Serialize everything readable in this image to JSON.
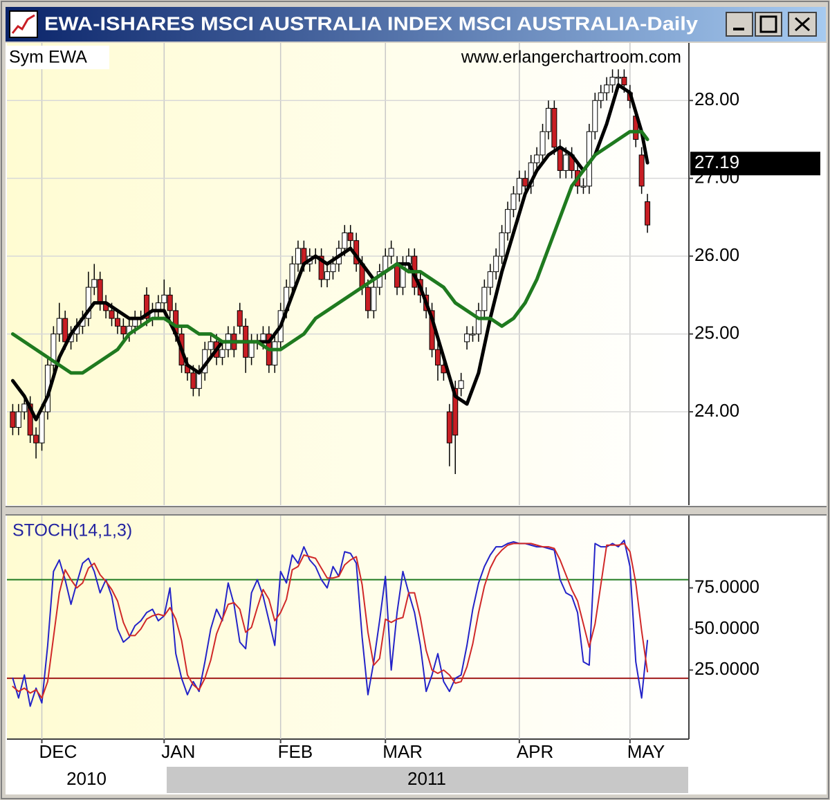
{
  "window_title": "EWA-ISHARES MSCI AUSTRALIA INDEX MSCI AUSTRALIA-Daily",
  "years": [
    "2010",
    "2011"
  ],
  "chart_data": [
    {
      "type": "candlestick",
      "symbol_label": "Sym EWA",
      "watermark": "www.erlangerchartroom.com",
      "x": [
        0,
        1,
        2,
        3,
        4,
        5,
        6,
        7,
        8,
        9,
        10,
        11,
        12,
        13,
        14,
        15,
        16,
        17,
        18,
        19,
        20,
        21,
        22,
        23,
        24,
        25,
        26,
        27,
        28,
        29,
        30,
        31,
        32,
        33,
        34,
        35,
        36,
        37,
        38,
        39,
        40,
        41,
        42,
        43,
        44,
        45,
        46,
        47,
        48,
        49,
        50,
        51,
        52,
        53,
        54,
        55,
        56,
        57,
        58,
        59,
        60,
        61,
        62,
        63,
        64,
        65,
        66,
        67,
        68,
        69,
        70,
        71,
        72,
        73,
        74,
        75,
        76,
        77,
        78,
        79,
        80,
        81,
        82,
        83,
        84,
        85,
        86,
        87,
        88,
        89,
        90,
        91,
        92,
        93,
        94,
        95,
        96,
        97,
        98,
        99,
        100,
        101,
        102,
        103,
        104,
        105,
        106,
        107,
        108,
        109
      ],
      "open": [
        24.0,
        23.8,
        24.0,
        24.1,
        23.7,
        23.6,
        24.0,
        24.6,
        25.0,
        25.2,
        24.9,
        25.0,
        25.1,
        25.2,
        25.6,
        25.7,
        25.4,
        25.3,
        25.2,
        25.1,
        25.0,
        25.1,
        25.2,
        25.5,
        25.2,
        25.3,
        25.4,
        25.5,
        25.3,
        25.0,
        24.6,
        24.5,
        24.3,
        24.5,
        24.8,
        24.9,
        24.7,
        24.8,
        25.0,
        25.3,
        25.1,
        24.7,
        24.9,
        24.9,
        25.0,
        24.6,
        24.9,
        25.3,
        25.6,
        25.9,
        26.1,
        25.9,
        26.0,
        26.0,
        25.7,
        25.8,
        25.9,
        26.1,
        26.3,
        26.2,
        25.9,
        25.6,
        25.3,
        25.6,
        25.8,
        26.0,
        25.9,
        25.6,
        25.9,
        26.0,
        25.7,
        25.5,
        25.3,
        24.8,
        24.6,
        24.0,
        24.3,
        24.3,
        24.9,
        25.0,
        25.0,
        25.3,
        25.6,
        25.8,
        26.0,
        26.3,
        26.6,
        26.8,
        27.0,
        26.9,
        27.2,
        27.3,
        27.6,
        27.9,
        27.4,
        27.1,
        27.3,
        27.1,
        26.9,
        26.9,
        27.6,
        28.0,
        28.1,
        28.2,
        28.3,
        28.3,
        28.1,
        27.8,
        27.3,
        26.7
      ],
      "high": [
        24.1,
        24.1,
        24.2,
        24.2,
        23.8,
        24.1,
        24.7,
        25.1,
        25.4,
        25.3,
        25.1,
        25.2,
        25.3,
        25.8,
        25.9,
        25.8,
        25.5,
        25.4,
        25.3,
        25.2,
        25.2,
        25.3,
        25.3,
        25.6,
        25.4,
        25.5,
        25.7,
        25.6,
        25.4,
        25.1,
        24.7,
        24.6,
        24.6,
        24.9,
        25.0,
        25.0,
        24.9,
        25.1,
        25.1,
        25.4,
        25.2,
        25.0,
        25.0,
        25.1,
        25.1,
        25.0,
        25.4,
        25.7,
        26.0,
        26.2,
        26.2,
        26.1,
        26.1,
        26.1,
        25.9,
        26.0,
        26.2,
        26.4,
        26.4,
        26.3,
        26.0,
        25.7,
        25.7,
        25.9,
        26.1,
        26.2,
        26.0,
        26.0,
        26.1,
        26.1,
        25.8,
        25.6,
        25.4,
        24.9,
        24.7,
        24.1,
        24.4,
        24.5,
        25.1,
        25.1,
        25.4,
        25.7,
        25.9,
        26.1,
        26.4,
        26.7,
        26.9,
        27.1,
        27.1,
        27.3,
        27.4,
        27.7,
        28.0,
        28.0,
        27.5,
        27.4,
        27.4,
        27.2,
        27.0,
        27.7,
        28.1,
        28.2,
        28.3,
        28.4,
        28.4,
        28.4,
        28.2,
        27.9,
        27.4,
        26.8
      ],
      "low": [
        23.7,
        23.7,
        23.9,
        23.6,
        23.4,
        23.5,
        23.9,
        24.5,
        24.9,
        24.8,
        24.8,
        24.9,
        25.0,
        25.1,
        25.5,
        25.3,
        25.2,
        25.1,
        25.0,
        24.9,
        24.9,
        25.0,
        25.1,
        25.1,
        25.1,
        25.2,
        25.3,
        25.2,
        24.9,
        24.5,
        24.4,
        24.2,
        24.2,
        24.4,
        24.7,
        24.6,
        24.6,
        24.7,
        24.7,
        25.0,
        24.5,
        24.6,
        24.8,
        24.8,
        24.5,
        24.5,
        24.8,
        25.2,
        25.5,
        25.8,
        25.8,
        25.8,
        25.9,
        25.6,
        25.6,
        25.7,
        25.8,
        26.0,
        26.1,
        25.8,
        25.5,
        25.2,
        25.2,
        25.5,
        25.7,
        25.9,
        25.5,
        25.5,
        25.8,
        25.5,
        25.4,
        25.2,
        24.7,
        24.4,
        24.4,
        23.3,
        23.2,
        24.2,
        24.8,
        24.9,
        24.9,
        25.2,
        25.5,
        25.7,
        25.9,
        26.2,
        26.5,
        26.7,
        26.8,
        26.8,
        27.1,
        27.2,
        27.5,
        27.3,
        27.0,
        27.0,
        27.0,
        26.8,
        26.8,
        26.8,
        27.5,
        27.9,
        28.0,
        28.1,
        28.2,
        28.1,
        27.9,
        27.4,
        26.8,
        26.3
      ],
      "close": [
        23.8,
        24.0,
        24.1,
        23.7,
        23.6,
        24.0,
        24.6,
        25.0,
        25.2,
        24.9,
        25.0,
        25.1,
        25.2,
        25.6,
        25.7,
        25.4,
        25.3,
        25.2,
        25.1,
        25.0,
        25.1,
        25.2,
        25.2,
        25.2,
        25.3,
        25.4,
        25.5,
        25.3,
        25.0,
        24.6,
        24.5,
        24.3,
        24.5,
        24.8,
        24.9,
        24.7,
        24.8,
        25.0,
        24.8,
        25.1,
        24.7,
        24.9,
        24.9,
        25.0,
        24.6,
        24.9,
        25.3,
        25.6,
        25.9,
        26.1,
        25.9,
        26.0,
        26.0,
        25.7,
        25.8,
        25.9,
        26.1,
        26.3,
        26.2,
        25.9,
        25.6,
        25.3,
        25.6,
        25.8,
        26.0,
        26.1,
        25.6,
        25.9,
        26.0,
        25.6,
        25.5,
        25.3,
        24.8,
        24.6,
        24.5,
        23.6,
        23.7,
        24.4,
        25.0,
        25.0,
        25.3,
        25.6,
        25.8,
        26.0,
        26.3,
        26.6,
        26.8,
        27.0,
        26.9,
        27.2,
        27.3,
        27.6,
        27.9,
        27.4,
        27.1,
        27.3,
        27.1,
        26.9,
        26.9,
        27.6,
        28.0,
        28.1,
        28.2,
        28.3,
        28.3,
        28.2,
        28.0,
        27.5,
        26.9,
        26.4
      ],
      "up_color": "#ffffff",
      "down_color": "#c81e24",
      "series": [
        {
          "color": "#000000",
          "x": [
            0,
            2,
            4,
            6,
            8,
            10,
            12,
            14,
            16,
            18,
            20,
            22,
            24,
            26,
            28,
            30,
            32,
            34,
            36,
            38,
            40,
            42,
            44,
            46,
            48,
            50,
            52,
            54,
            56,
            58,
            60,
            62,
            64,
            66,
            68,
            70,
            72,
            74,
            76,
            78,
            80,
            82,
            84,
            86,
            88,
            90,
            92,
            94,
            96,
            98,
            100,
            102,
            104,
            106,
            108,
            109
          ],
          "values": [
            24.4,
            24.2,
            23.9,
            24.2,
            24.7,
            25.0,
            25.2,
            25.4,
            25.4,
            25.3,
            25.2,
            25.2,
            25.3,
            25.3,
            25.0,
            24.6,
            24.5,
            24.7,
            24.9,
            24.9,
            24.9,
            24.9,
            24.9,
            25.1,
            25.5,
            25.9,
            26.0,
            25.9,
            26.0,
            26.1,
            25.9,
            25.7,
            25.8,
            25.9,
            25.9,
            25.6,
            25.2,
            24.7,
            24.2,
            24.1,
            24.5,
            25.2,
            25.8,
            26.3,
            26.8,
            27.1,
            27.3,
            27.4,
            27.3,
            27.1,
            27.3,
            27.7,
            28.2,
            28.1,
            27.6,
            27.2
          ]
        },
        {
          "color": "#1f7a1f",
          "x": [
            0,
            2,
            4,
            6,
            8,
            10,
            12,
            14,
            16,
            18,
            20,
            22,
            24,
            26,
            28,
            30,
            32,
            34,
            36,
            38,
            40,
            42,
            44,
            46,
            48,
            50,
            52,
            54,
            56,
            58,
            60,
            62,
            64,
            66,
            68,
            70,
            72,
            74,
            76,
            78,
            80,
            82,
            84,
            86,
            88,
            90,
            92,
            94,
            96,
            98,
            100,
            102,
            104,
            106,
            108,
            109
          ],
          "values": [
            25.0,
            24.9,
            24.8,
            24.7,
            24.6,
            24.5,
            24.5,
            24.6,
            24.7,
            24.8,
            25.0,
            25.1,
            25.2,
            25.2,
            25.1,
            25.1,
            25.0,
            25.0,
            24.9,
            24.9,
            24.9,
            24.9,
            24.8,
            24.8,
            24.9,
            25.0,
            25.2,
            25.3,
            25.4,
            25.5,
            25.6,
            25.7,
            25.8,
            25.9,
            25.8,
            25.8,
            25.7,
            25.6,
            25.4,
            25.3,
            25.2,
            25.2,
            25.1,
            25.2,
            25.4,
            25.7,
            26.1,
            26.5,
            26.9,
            27.1,
            27.3,
            27.4,
            27.5,
            27.6,
            27.6,
            27.5
          ]
        }
      ],
      "last_value": 27.19,
      "xlim": [
        -1,
        116
      ],
      "ylim": [
        22.8,
        28.74
      ],
      "yticks": [
        {
          "value": 24,
          "label": "24.00"
        },
        {
          "value": 25,
          "label": "25.00"
        },
        {
          "value": 26,
          "label": "26.00"
        },
        {
          "value": 27,
          "label": "27.00"
        },
        {
          "value": 28,
          "label": "28.00"
        }
      ],
      "grid": true
    },
    {
      "type": "line",
      "title": "STOCH(14,1,3)",
      "x": [
        0,
        1,
        2,
        3,
        4,
        5,
        6,
        7,
        8,
        9,
        10,
        11,
        12,
        13,
        14,
        15,
        16,
        17,
        18,
        19,
        20,
        21,
        22,
        23,
        24,
        25,
        26,
        27,
        28,
        29,
        30,
        31,
        32,
        33,
        34,
        35,
        36,
        37,
        38,
        39,
        40,
        41,
        42,
        43,
        44,
        45,
        46,
        47,
        48,
        49,
        50,
        51,
        52,
        53,
        54,
        55,
        56,
        57,
        58,
        59,
        60,
        61,
        62,
        63,
        64,
        65,
        66,
        67,
        68,
        69,
        70,
        71,
        72,
        73,
        74,
        75,
        76,
        77,
        78,
        79,
        80,
        81,
        82,
        83,
        84,
        85,
        86,
        87,
        88,
        89,
        90,
        91,
        92,
        93,
        94,
        95,
        96,
        97,
        98,
        99,
        100,
        101,
        102,
        103,
        104,
        105,
        106,
        107,
        108,
        109
      ],
      "series": [
        {
          "color": "#2323c8",
          "values": [
            20,
            8,
            22,
            3,
            14,
            5,
            40,
            85,
            92,
            80,
            65,
            78,
            90,
            93,
            85,
            72,
            80,
            70,
            50,
            42,
            45,
            52,
            55,
            60,
            62,
            55,
            58,
            75,
            35,
            20,
            10,
            18,
            12,
            30,
            50,
            62,
            55,
            78,
            65,
            42,
            38,
            72,
            80,
            70,
            55,
            40,
            85,
            78,
            95,
            90,
            100,
            92,
            88,
            80,
            75,
            88,
            82,
            97,
            96,
            90,
            45,
            10,
            30,
            55,
            82,
            25,
            60,
            85,
            72,
            60,
            40,
            12,
            22,
            35,
            18,
            12,
            20,
            22,
            40,
            62,
            78,
            88,
            95,
            100,
            100,
            102,
            103,
            102,
            102,
            101,
            100,
            100,
            99,
            98,
            80,
            72,
            70,
            60,
            30,
            28,
            102,
            100,
            100,
            102,
            100,
            104,
            88,
            30,
            8,
            43
          ]
        },
        {
          "color": "#d02828",
          "values": [
            15,
            12,
            14,
            11,
            13,
            8,
            18,
            45,
            72,
            86,
            80,
            75,
            78,
            87,
            90,
            83,
            79,
            74,
            67,
            54,
            46,
            46,
            50,
            56,
            58,
            59,
            58,
            63,
            56,
            43,
            22,
            16,
            13,
            20,
            31,
            47,
            56,
            65,
            66,
            62,
            48,
            51,
            63,
            74,
            68,
            55,
            60,
            68,
            86,
            88,
            95,
            94,
            93,
            87,
            81,
            81,
            82,
            89,
            92,
            94,
            77,
            48,
            28,
            32,
            56,
            54,
            56,
            57,
            72,
            72,
            57,
            37,
            25,
            23,
            25,
            22,
            17,
            18,
            27,
            41,
            60,
            76,
            87,
            94,
            98,
            101,
            102,
            102,
            102,
            102,
            101,
            100,
            100,
            99,
            92,
            83,
            74,
            67,
            53,
            39,
            53,
            77,
            101,
            101,
            101,
            102,
            97,
            78,
            49,
            24
          ]
        }
      ],
      "levels": [
        {
          "value": 80,
          "color": "#1f7a1f"
        },
        {
          "value": 20,
          "color": "#a01818"
        }
      ],
      "xlim": [
        -1,
        116
      ],
      "ylim": [
        -17,
        119
      ],
      "yticks": [
        {
          "value": 25,
          "label": "25.0000"
        },
        {
          "value": 50,
          "label": "50.0000"
        },
        {
          "value": 75,
          "label": "75.0000"
        }
      ],
      "xticks": [
        {
          "value": 5,
          "label": "DEC"
        },
        {
          "value": 26,
          "label": "JAN"
        },
        {
          "value": 46,
          "label": "FEB"
        },
        {
          "value": 64,
          "label": "MAR"
        },
        {
          "value": 87,
          "label": "APR"
        },
        {
          "value": 106,
          "label": "MAY"
        }
      ],
      "grid": true
    }
  ]
}
